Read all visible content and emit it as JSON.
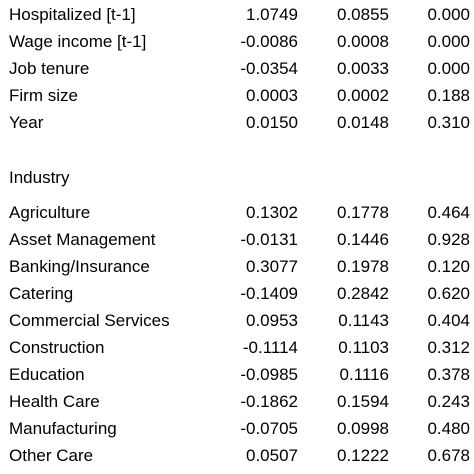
{
  "top_rows": [
    {
      "label": "Hospitalized [t-1]",
      "coef": "1.0749",
      "se": "0.0855",
      "p": "0.000"
    },
    {
      "label": "Wage income [t-1]",
      "coef": "-0.0086",
      "se": "0.0008",
      "p": "0.000"
    },
    {
      "label": "Job tenure",
      "coef": "-0.0354",
      "se": "0.0033",
      "p": "0.000"
    },
    {
      "label": "Firm size",
      "coef": "0.0003",
      "se": "0.0002",
      "p": "0.188"
    },
    {
      "label": "Year",
      "coef": "0.0150",
      "se": "0.0148",
      "p": "0.310"
    }
  ],
  "industry_heading": "Industry",
  "industry_rows": [
    {
      "label": "Agriculture",
      "coef": "0.1302",
      "se": "0.1778",
      "p": "0.464"
    },
    {
      "label": "Asset Management",
      "coef": "-0.0131",
      "se": "0.1446",
      "p": "0.928"
    },
    {
      "label": "Banking/Insurance",
      "coef": "0.3077",
      "se": "0.1978",
      "p": "0.120"
    },
    {
      "label": "Catering",
      "coef": "-0.1409",
      "se": "0.2842",
      "p": "0.620"
    },
    {
      "label": "Commercial Services",
      "coef": "0.0953",
      "se": "0.1143",
      "p": "0.404"
    },
    {
      "label": "Construction",
      "coef": "-0.1114",
      "se": "0.1103",
      "p": "0.312"
    },
    {
      "label": "Education",
      "coef": "-0.0985",
      "se": "0.1116",
      "p": "0.378"
    },
    {
      "label": "Health Care",
      "coef": "-0.1862",
      "se": "0.1594",
      "p": "0.243"
    },
    {
      "label": "Manufacturing",
      "coef": "-0.0705",
      "se": "0.0998",
      "p": "0.480"
    },
    {
      "label": "Other Care",
      "coef": "0.0507",
      "se": "0.1222",
      "p": "0.678"
    }
  ]
}
